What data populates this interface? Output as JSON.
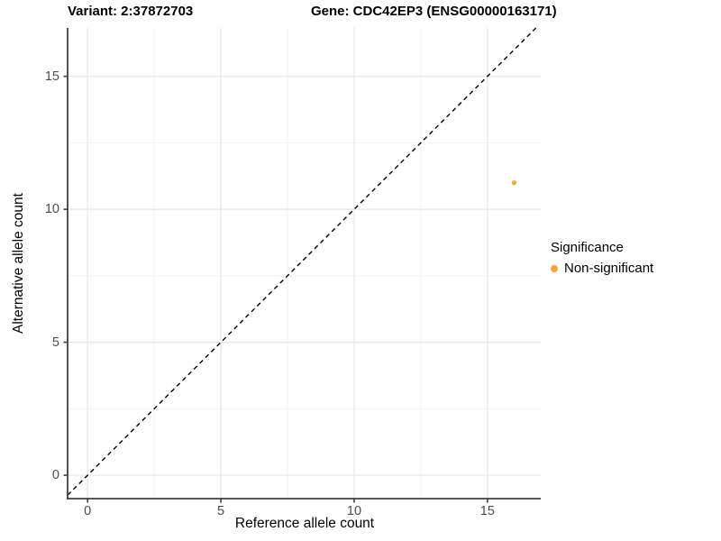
{
  "titles": {
    "variant": "Variant: 2:37872703",
    "gene": "Gene: CDC42EP3 (ENSG00000163171)"
  },
  "legend": {
    "title": "Significance",
    "items": [
      {
        "label": "Non-significant",
        "color": "#FBA338"
      }
    ]
  },
  "chart_data": {
    "type": "scatter",
    "title": "Variant: 2:37872703  |  Gene: CDC42EP3 (ENSG00000163171)",
    "xlabel": "Reference allele count",
    "ylabel": "Alternative allele count",
    "xlim": [
      -0.75,
      17.0
    ],
    "ylim": [
      -0.88,
      16.82
    ],
    "x_ticks": [
      0,
      5,
      10,
      15
    ],
    "y_ticks": [
      0,
      5,
      10,
      15
    ],
    "x_minor_ticks": [
      2.5,
      7.5,
      12.5
    ],
    "y_minor_ticks": [
      2.5,
      7.5,
      12.5
    ],
    "grid": "major+minor",
    "legend_position": "right",
    "series": [
      {
        "name": "Non-significant",
        "color": "#FBA338",
        "points": [
          {
            "x": 16,
            "y": 11
          }
        ]
      }
    ],
    "reference_line": {
      "slope": 1,
      "intercept": 0,
      "style": "dashed",
      "color": "#000000"
    },
    "colors": {
      "grid_major": "#e6e6e6",
      "grid_minor": "#f2f2f2",
      "axis_line": "#3f3f3f",
      "tick_text": "#4d4d4d",
      "point": "#FBA338",
      "background": "#ffffff"
    }
  }
}
